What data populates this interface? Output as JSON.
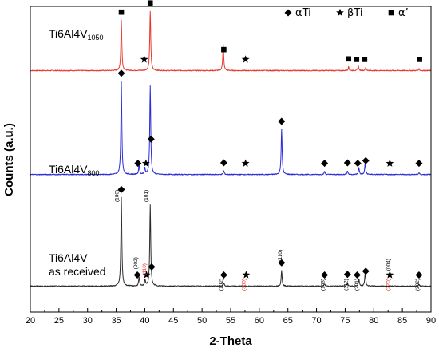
{
  "chart_data": {
    "type": "line",
    "xlabel": "2-Theta",
    "ylabel": "Counts (a.u.)",
    "xlim": [
      20,
      90
    ],
    "x_ticks": [
      "20",
      "25",
      "30",
      "35",
      "40",
      "45",
      "50",
      "55",
      "60",
      "65",
      "70",
      "75",
      "80",
      "85",
      "90"
    ],
    "legend": [
      {
        "symbol": "◆",
        "label": "αTi"
      },
      {
        "symbol": "★",
        "label": "βTi"
      },
      {
        "symbol": "■",
        "label": "α’"
      }
    ],
    "series": [
      {
        "name": "Ti6Al4V",
        "name_sub": "1050",
        "name_line2": "",
        "color": "#e8392f",
        "offset": 0.79,
        "peaks": [
          {
            "x": 35.9,
            "h": 0.165
          },
          {
            "x": 40.95,
            "h": 0.195
          },
          {
            "x": 53.7,
            "h": 0.085
          },
          {
            "x": 75.6,
            "h": 0.012
          },
          {
            "x": 77.3,
            "h": 0.016
          },
          {
            "x": 78.6,
            "h": 0.01
          },
          {
            "x": 87.9,
            "h": 0.006
          }
        ],
        "markers": [
          {
            "x": 35.9,
            "sym": "square"
          },
          {
            "x": 40.95,
            "sym": "square"
          },
          {
            "x": 39.9,
            "sym": "star"
          },
          {
            "x": 53.8,
            "sym": "square"
          },
          {
            "x": 57.6,
            "sym": "star"
          },
          {
            "x": 75.6,
            "sym": "square"
          },
          {
            "x": 77.0,
            "sym": "square"
          },
          {
            "x": 78.4,
            "sym": "square"
          },
          {
            "x": 88.0,
            "sym": "square"
          }
        ],
        "hkl": []
      },
      {
        "name": "Ti6Al4V",
        "name_sub": "800",
        "name_line2": "",
        "color": "#2a2ad8",
        "offset": 0.45,
        "peaks": [
          {
            "x": 35.9,
            "h": 0.305
          },
          {
            "x": 39.0,
            "h": 0.03
          },
          {
            "x": 40.0,
            "h": 0.02
          },
          {
            "x": 40.95,
            "h": 0.29
          },
          {
            "x": 53.8,
            "h": 0.012
          },
          {
            "x": 63.9,
            "h": 0.148
          },
          {
            "x": 71.4,
            "h": 0.01
          },
          {
            "x": 75.4,
            "h": 0.012
          },
          {
            "x": 77.4,
            "h": 0.022
          },
          {
            "x": 78.5,
            "h": 0.038
          },
          {
            "x": 87.9,
            "h": 0.006
          }
        ],
        "markers": [
          {
            "x": 35.9,
            "sym": "diamond"
          },
          {
            "x": 38.8,
            "sym": "diamond"
          },
          {
            "x": 40.2,
            "sym": "star"
          },
          {
            "x": 41.1,
            "sym": "diamond"
          },
          {
            "x": 53.8,
            "sym": "diamond"
          },
          {
            "x": 57.6,
            "sym": "star"
          },
          {
            "x": 63.9,
            "sym": "diamond"
          },
          {
            "x": 71.4,
            "sym": "diamond"
          },
          {
            "x": 75.4,
            "sym": "diamond"
          },
          {
            "x": 77.2,
            "sym": "diamond"
          },
          {
            "x": 78.6,
            "sym": "diamond"
          },
          {
            "x": 82.8,
            "sym": "star"
          },
          {
            "x": 87.9,
            "sym": "diamond"
          }
        ],
        "hkl": []
      },
      {
        "name": "Ti6Al4V",
        "name_sub": "",
        "name_line2": "as received",
        "color": "#2b2b2b",
        "offset": 0.085,
        "peaks": [
          {
            "x": 35.9,
            "h": 0.29
          },
          {
            "x": 39.0,
            "h": 0.028
          },
          {
            "x": 40.05,
            "h": 0.02
          },
          {
            "x": 40.95,
            "h": 0.265
          },
          {
            "x": 53.8,
            "h": 0.01
          },
          {
            "x": 63.9,
            "h": 0.05
          },
          {
            "x": 71.4,
            "h": 0.008
          },
          {
            "x": 75.4,
            "h": 0.012
          },
          {
            "x": 77.4,
            "h": 0.022
          },
          {
            "x": 78.5,
            "h": 0.045
          },
          {
            "x": 87.9,
            "h": 0.006
          }
        ],
        "markers": [
          {
            "x": 35.9,
            "sym": "diamond"
          },
          {
            "x": 38.7,
            "sym": "diamond"
          },
          {
            "x": 40.3,
            "sym": "star"
          },
          {
            "x": 41.2,
            "sym": "diamond"
          },
          {
            "x": 53.8,
            "sym": "diamond"
          },
          {
            "x": 57.7,
            "sym": "star"
          },
          {
            "x": 63.9,
            "sym": "diamond"
          },
          {
            "x": 71.4,
            "sym": "diamond"
          },
          {
            "x": 75.4,
            "sym": "diamond"
          },
          {
            "x": 77.1,
            "sym": "diamond"
          },
          {
            "x": 78.6,
            "sym": "diamond"
          },
          {
            "x": 82.8,
            "sym": "star"
          },
          {
            "x": 87.9,
            "sym": "diamond"
          }
        ],
        "hkl": [
          {
            "x": 35.4,
            "label": "(100)",
            "color": "#000000",
            "at": 0.38
          },
          {
            "x": 40.5,
            "label": "(101)",
            "color": "#000000",
            "at": 0.38
          },
          {
            "x": 38.7,
            "label": "(002)",
            "color": "#000000",
            "at": 0.16
          },
          {
            "x": 40.2,
            "label": "(110)",
            "color": "#e8392f",
            "at": 0.14
          },
          {
            "x": 53.6,
            "label": "(102)",
            "color": "#000000",
            "at": 0.09
          },
          {
            "x": 57.6,
            "label": "(300)",
            "color": "#e8392f",
            "at": 0.09
          },
          {
            "x": 63.9,
            "label": "(110)",
            "color": "#000000",
            "at": 0.185
          },
          {
            "x": 71.4,
            "label": "(103)",
            "color": "#000000",
            "at": 0.09
          },
          {
            "x": 75.4,
            "label": "(112)",
            "color": "#000000",
            "at": 0.09
          },
          {
            "x": 77.3,
            "label": "(201)",
            "color": "#000000",
            "at": 0.09
          },
          {
            "x": 82.8,
            "label": "(004)",
            "color": "#000000",
            "at": 0.155
          },
          {
            "x": 82.8,
            "label": "(220)",
            "color": "#e8392f",
            "at": 0.09
          },
          {
            "x": 87.9,
            "label": "(202)",
            "color": "#000000",
            "at": 0.09
          }
        ]
      }
    ]
  }
}
